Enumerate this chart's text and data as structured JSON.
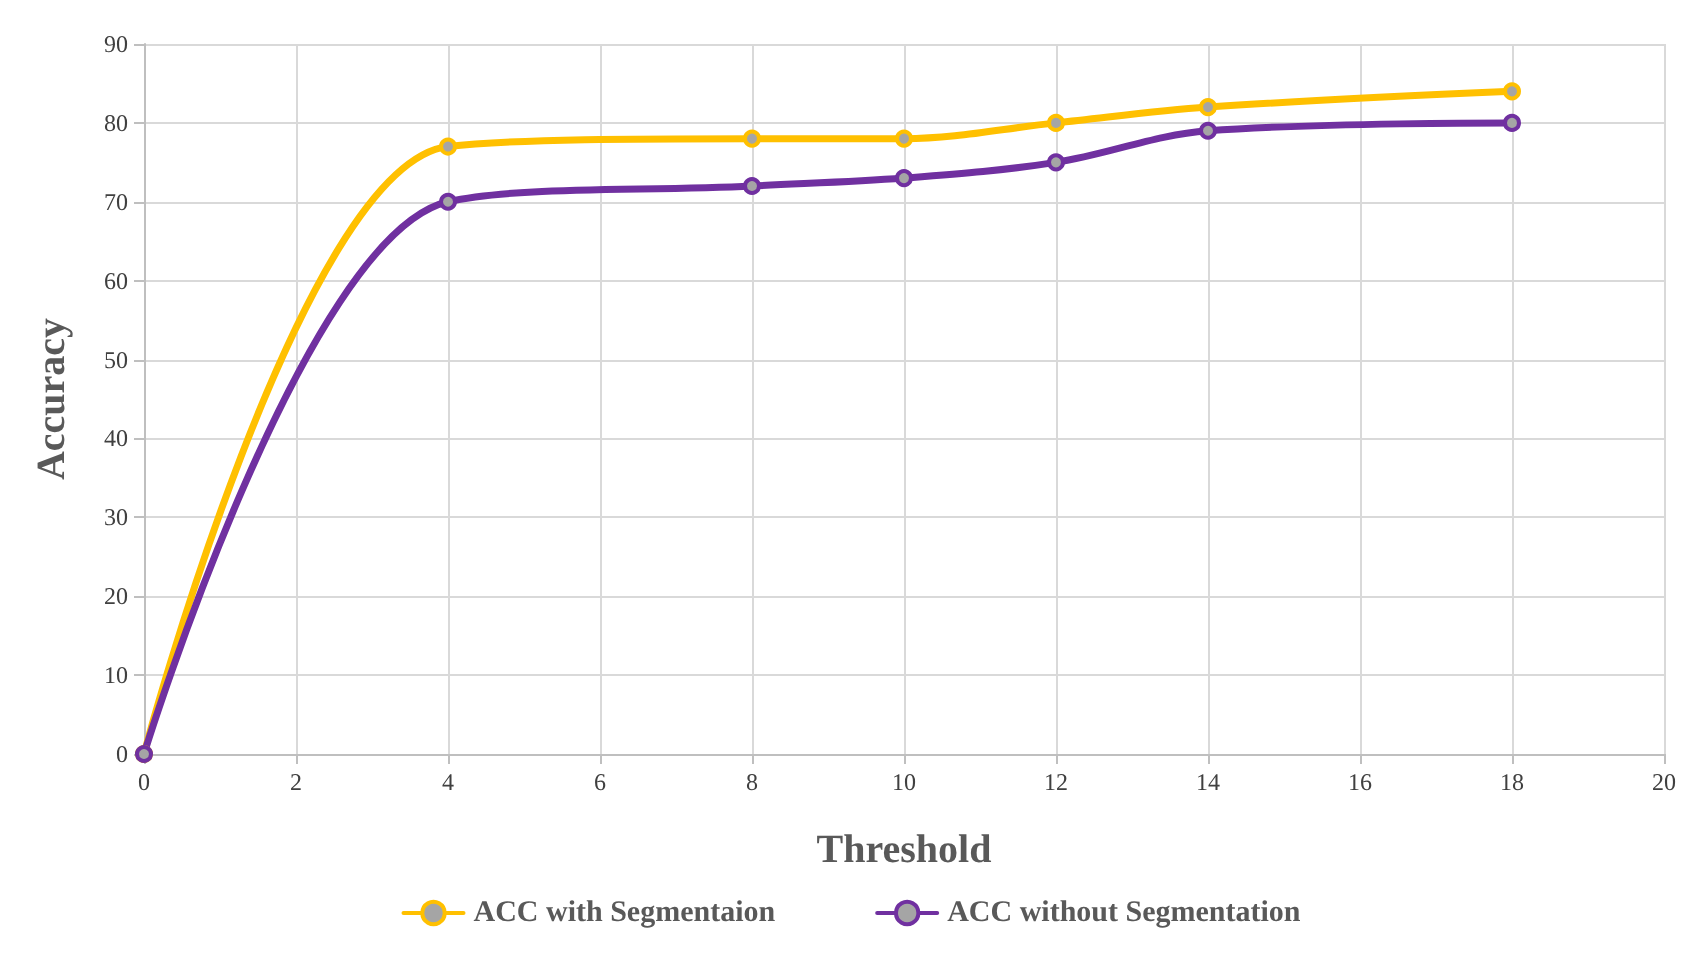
{
  "chart_data": {
    "type": "line",
    "xlabel": "Threshold",
    "ylabel": "Accuracy",
    "x": [
      0,
      4,
      8,
      10,
      12,
      14,
      18
    ],
    "series": [
      {
        "name": "ACC with Segmentaion",
        "color": "#ffc000",
        "values": [
          0,
          77,
          78,
          78,
          80,
          82,
          84
        ]
      },
      {
        "name": "ACC without Segmentation",
        "color": "#7030a0",
        "values": [
          0,
          70,
          72,
          73,
          75,
          79,
          80
        ]
      }
    ],
    "xlim": [
      0,
      20
    ],
    "xticks": [
      0,
      2,
      4,
      6,
      8,
      10,
      12,
      14,
      16,
      18,
      20
    ],
    "ylim": [
      0,
      90
    ],
    "yticks": [
      0,
      10,
      20,
      30,
      40,
      50,
      60,
      70,
      80,
      90
    ],
    "grid": true,
    "legend": "bottom",
    "marker": "circle",
    "line_style": "solid"
  }
}
